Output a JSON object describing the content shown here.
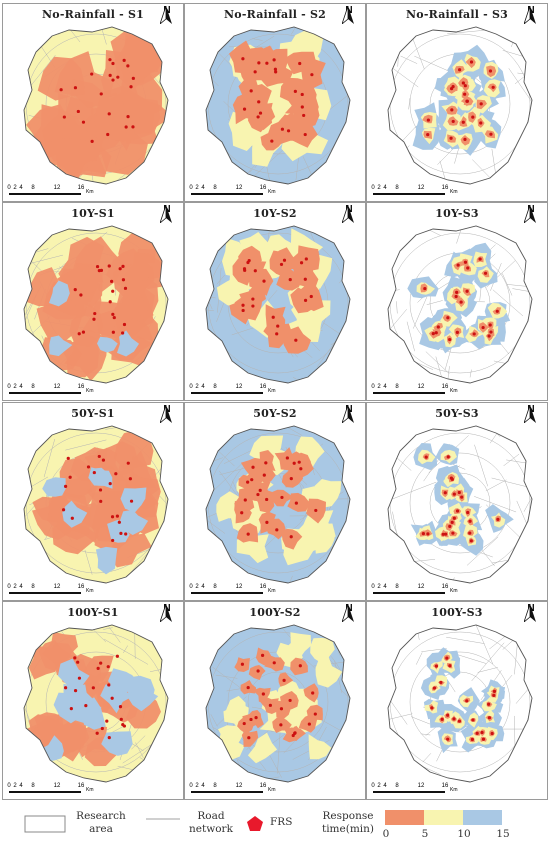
{
  "panels": [
    {
      "title": "No-Rainfall - S1",
      "col": 0,
      "row": 0,
      "coverage": "full-orange"
    },
    {
      "title": "No-Rainfall - S2",
      "col": 1,
      "row": 0,
      "coverage": "orange-mix"
    },
    {
      "title": "No-Rainfall - S3",
      "col": 2,
      "row": 0,
      "coverage": "sparse"
    },
    {
      "title": "10Y-S1",
      "col": 0,
      "row": 1,
      "coverage": "full-orange"
    },
    {
      "title": "10Y-S2",
      "col": 1,
      "row": 1,
      "coverage": "orange-mix"
    },
    {
      "title": "10Y-S3",
      "col": 2,
      "row": 1,
      "coverage": "sparse"
    },
    {
      "title": "50Y-S1",
      "col": 0,
      "row": 2,
      "coverage": "full-orange"
    },
    {
      "title": "50Y-S2",
      "col": 1,
      "row": 2,
      "coverage": "orange-mix"
    },
    {
      "title": "50Y-S3",
      "col": 2,
      "row": 2,
      "coverage": "sparse"
    },
    {
      "title": "100Y-S1",
      "col": 0,
      "row": 3,
      "coverage": "full-orange"
    },
    {
      "title": "100Y-S2",
      "col": 1,
      "row": 3,
      "coverage": "orange-mix"
    },
    {
      "title": "100Y-S3",
      "col": 2,
      "row": 3,
      "coverage": "sparse"
    }
  ],
  "north_label": "N",
  "scale_bar": {
    "ticks": [
      "0",
      "2",
      "4",
      "8",
      "12",
      "16"
    ],
    "unit": "Km"
  },
  "legend": {
    "research_area": "Research area",
    "road_network": "Road network",
    "frs": "FRS",
    "response_time": "Response time(min)",
    "breaks": [
      "0",
      "5",
      "10",
      "15"
    ]
  },
  "colors": {
    "response_0_5": "#f0906a",
    "response_5_10": "#f8f4b0",
    "response_10_15": "#a9c8e4",
    "frs_marker": "#cc1111",
    "boundary": "#555555",
    "roads": "#b4b4b4"
  }
}
